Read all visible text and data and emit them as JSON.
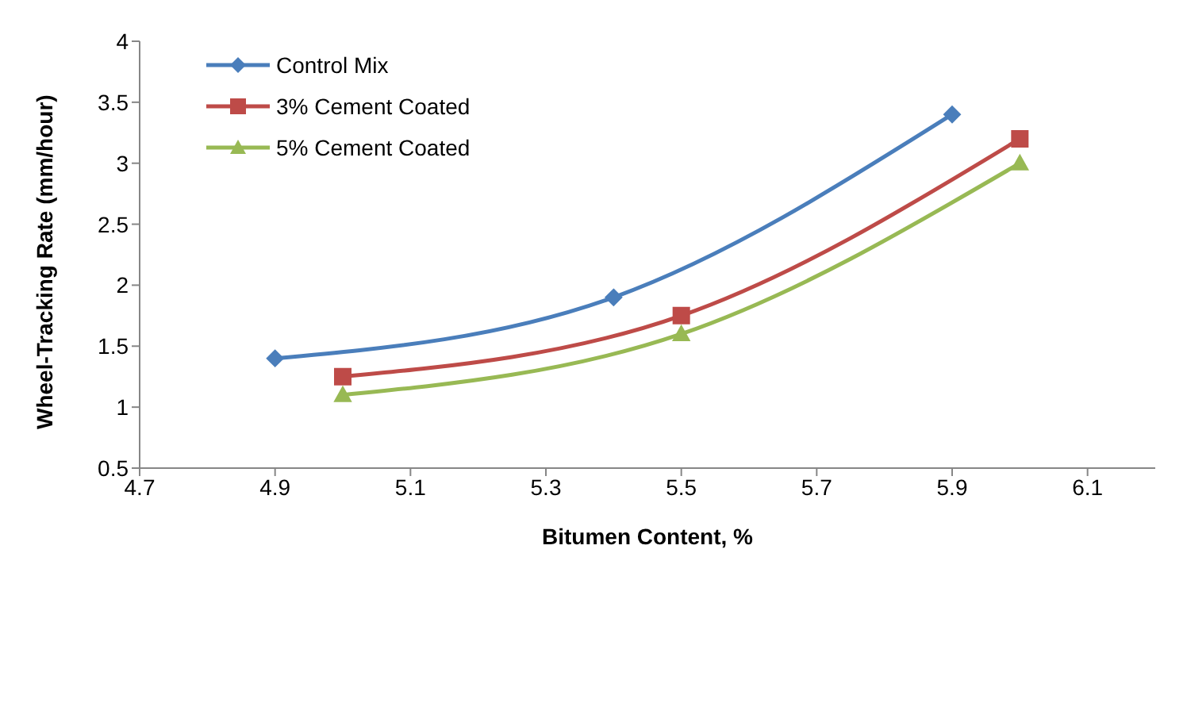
{
  "chart_data": {
    "type": "line",
    "xlabel": "Bitumen Content, %",
    "ylabel": "Wheel-Tracking Rate (mm/hour)",
    "series": [
      {
        "name": "Control Mix",
        "color": "#4a7ebb",
        "marker": "diamond",
        "x": [
          4.9,
          5.4,
          5.9
        ],
        "values": [
          1.4,
          1.9,
          3.4
        ]
      },
      {
        "name": "3% Cement Coated",
        "color": "#be4b48",
        "marker": "square",
        "x": [
          5.0,
          5.5,
          6.0
        ],
        "values": [
          1.25,
          1.75,
          3.2
        ]
      },
      {
        "name": "5% Cement Coated",
        "color": "#98b954",
        "marker": "triangle",
        "x": [
          5.0,
          5.5,
          6.0
        ],
        "values": [
          1.1,
          1.6,
          3.0
        ]
      }
    ],
    "xlim": [
      4.7,
      6.2
    ],
    "xticks": [
      4.7,
      4.9,
      5.1,
      5.3,
      5.5,
      5.7,
      5.9,
      6.1
    ],
    "ylim": [
      0.5,
      4
    ],
    "yticks": [
      0.5,
      1,
      1.5,
      2,
      2.5,
      3,
      3.5,
      4
    ],
    "grid": false,
    "legend": "top left",
    "line_style": "solid"
  }
}
